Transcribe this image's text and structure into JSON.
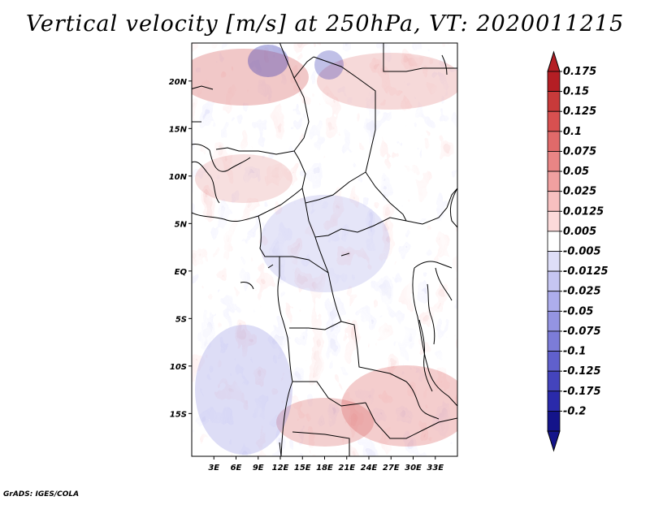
{
  "title": "Vertical velocity [m/s] at 250hPa, VT: 2020011215",
  "credit": "GrADS: IGES/COLA",
  "map": {
    "lon_range": [
      0,
      36
    ],
    "lat_range": [
      -19.5,
      24
    ],
    "lon_ticks": [
      3,
      6,
      9,
      12,
      15,
      18,
      21,
      24,
      27,
      30,
      33
    ],
    "lon_tick_labels": [
      "3E",
      "6E",
      "9E",
      "12E",
      "15E",
      "18E",
      "21E",
      "24E",
      "27E",
      "30E",
      "33E"
    ],
    "lat_ticks": [
      20,
      15,
      10,
      5,
      0,
      -5,
      -10,
      -15
    ],
    "lat_tick_labels": [
      "20N",
      "15N",
      "10N",
      "5N",
      "EQ",
      "5S",
      "10S",
      "15S"
    ]
  },
  "colorbar": {
    "labels": [
      "0.175",
      "0.15",
      "0.125",
      "0.1",
      "0.075",
      "0.05",
      "0.025",
      "0.0125",
      "0.005",
      "-0.005",
      "-0.0125",
      "-0.025",
      "-0.05",
      "-0.075",
      "-0.1",
      "-0.125",
      "-0.175",
      "-0.2"
    ],
    "colors": [
      "#b41e24",
      "#c83a3a",
      "#d85050",
      "#e06a6a",
      "#e98585",
      "#f0a0a0",
      "#f7c0c0",
      "#fcdada",
      "#ffffff",
      "#dedef8",
      "#c6c6f2",
      "#adadec",
      "#9494e2",
      "#7c7cd8",
      "#6060cc",
      "#4444bc",
      "#2a2aaa",
      "#14148a"
    ]
  }
}
